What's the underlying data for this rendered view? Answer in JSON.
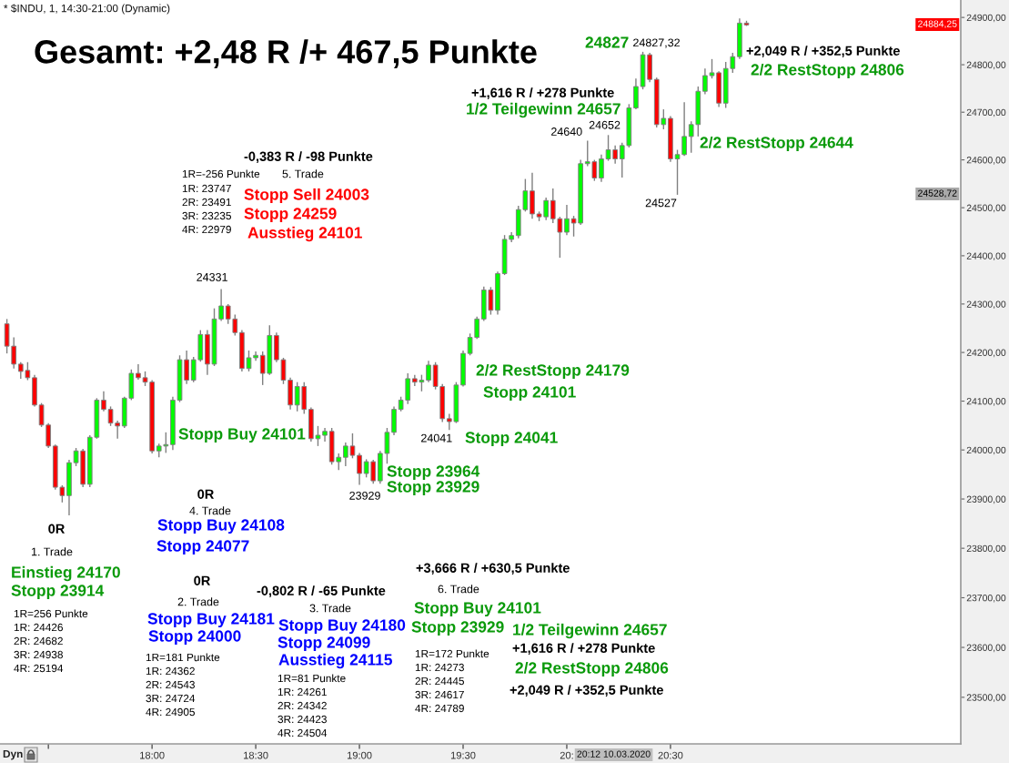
{
  "chart_data": {
    "type": "candlestick",
    "title": "Gesamt: +2,48 R /+ 467,5 Punkte",
    "subtitle": "* $INDU, 1, 14:30-21:00 (Dynamic)",
    "x": [
      "2020-03-10T17:18",
      "2020-03-10T17:20",
      "2020-03-10T17:22",
      "2020-03-10T17:24",
      "2020-03-10T17:26",
      "2020-03-10T17:28",
      "2020-03-10T17:30",
      "2020-03-10T17:32",
      "2020-03-10T17:34",
      "2020-03-10T17:36",
      "2020-03-10T17:38",
      "2020-03-10T17:40",
      "2020-03-10T17:42",
      "2020-03-10T17:44",
      "2020-03-10T17:46",
      "2020-03-10T17:48",
      "2020-03-10T17:50",
      "2020-03-10T17:52",
      "2020-03-10T17:54",
      "2020-03-10T17:56",
      "2020-03-10T17:58",
      "2020-03-10T18:00",
      "2020-03-10T18:02",
      "2020-03-10T18:04",
      "2020-03-10T18:06",
      "2020-03-10T18:08",
      "2020-03-10T18:10",
      "2020-03-10T18:12",
      "2020-03-10T18:14",
      "2020-03-10T18:16",
      "2020-03-10T18:18",
      "2020-03-10T18:20",
      "2020-03-10T18:22",
      "2020-03-10T18:24",
      "2020-03-10T18:26",
      "2020-03-10T18:28",
      "2020-03-10T18:30",
      "2020-03-10T18:32",
      "2020-03-10T18:34",
      "2020-03-10T18:36",
      "2020-03-10T18:38",
      "2020-03-10T18:40",
      "2020-03-10T18:42",
      "2020-03-10T18:44",
      "2020-03-10T18:46",
      "2020-03-10T18:48",
      "2020-03-10T18:50",
      "2020-03-10T18:52",
      "2020-03-10T18:54",
      "2020-03-10T18:56",
      "2020-03-10T18:58",
      "2020-03-10T19:00",
      "2020-03-10T19:02",
      "2020-03-10T19:04",
      "2020-03-10T19:06",
      "2020-03-10T19:08",
      "2020-03-10T19:10",
      "2020-03-10T19:12",
      "2020-03-10T19:14",
      "2020-03-10T19:16",
      "2020-03-10T19:18",
      "2020-03-10T19:20",
      "2020-03-10T19:22",
      "2020-03-10T19:24",
      "2020-03-10T19:26",
      "2020-03-10T19:28",
      "2020-03-10T19:30",
      "2020-03-10T19:32",
      "2020-03-10T19:34",
      "2020-03-10T19:36",
      "2020-03-10T19:38",
      "2020-03-10T19:40",
      "2020-03-10T19:42",
      "2020-03-10T19:44",
      "2020-03-10T19:46",
      "2020-03-10T19:48",
      "2020-03-10T19:50",
      "2020-03-10T19:52",
      "2020-03-10T19:54",
      "2020-03-10T19:56",
      "2020-03-10T19:58",
      "2020-03-10T20:00",
      "2020-03-10T20:02",
      "2020-03-10T20:04",
      "2020-03-10T20:06",
      "2020-03-10T20:08",
      "2020-03-10T20:10",
      "2020-03-10T20:12",
      "2020-03-10T20:14",
      "2020-03-10T20:16",
      "2020-03-10T20:18",
      "2020-03-10T20:20",
      "2020-03-10T20:22",
      "2020-03-10T20:24",
      "2020-03-10T20:26",
      "2020-03-10T20:28",
      "2020-03-10T20:30",
      "2020-03-10T20:32",
      "2020-03-10T20:34",
      "2020-03-10T20:36",
      "2020-03-10T20:38",
      "2020-03-10T20:40",
      "2020-03-10T20:42",
      "2020-03-10T20:44",
      "2020-03-10T20:46",
      "2020-03-10T20:48",
      "2020-03-10T20:50",
      "2020-03-10T20:52"
    ],
    "ohlc": [
      [
        24259,
        24269,
        24198,
        24213
      ],
      [
        24213,
        24231,
        24167,
        24176
      ],
      [
        24176,
        24180,
        24146,
        24161
      ],
      [
        24163,
        24180,
        24143,
        24148
      ],
      [
        24148,
        24154,
        24089,
        24092
      ],
      [
        24092,
        24096,
        24047,
        24051
      ],
      [
        24051,
        24055,
        24004,
        24008
      ],
      [
        24008,
        24011,
        23919,
        23924
      ],
      [
        23924,
        23928,
        23893,
        23907
      ],
      [
        23907,
        23980,
        23867,
        23974
      ],
      [
        23974,
        24004,
        23967,
        23998
      ],
      [
        23998,
        24002,
        23924,
        23930
      ],
      [
        23930,
        24030,
        23924,
        24026
      ],
      [
        24026,
        24106,
        24023,
        24102
      ],
      [
        24102,
        24120,
        24079,
        24083
      ],
      [
        24083,
        24089,
        24049,
        24055
      ],
      [
        24055,
        24060,
        24023,
        24049
      ],
      [
        24049,
        24109,
        24045,
        24106
      ],
      [
        24106,
        24165,
        24102,
        24157
      ],
      [
        24157,
        24176,
        24144,
        24148
      ],
      [
        24148,
        24161,
        24131,
        24139
      ],
      [
        24139,
        24143,
        23993,
        23998
      ],
      [
        23998,
        24013,
        23985,
        24008
      ],
      [
        24008,
        24036,
        23994,
        24011
      ],
      [
        24011,
        24109,
        24000,
        24102
      ],
      [
        24102,
        24194,
        24098,
        24185
      ],
      [
        24185,
        24204,
        24135,
        24143
      ],
      [
        24143,
        24191,
        24139,
        24185
      ],
      [
        24185,
        24246,
        24181,
        24237
      ],
      [
        24237,
        24246,
        24154,
        24176
      ],
      [
        24176,
        24291,
        24172,
        24269
      ],
      [
        24269,
        24331,
        24265,
        24296
      ],
      [
        24296,
        24300,
        24259,
        24269
      ],
      [
        24269,
        24278,
        24235,
        24241
      ],
      [
        24241,
        24246,
        24161,
        24167
      ],
      [
        24167,
        24204,
        24161,
        24189
      ],
      [
        24189,
        24202,
        24183,
        24194
      ],
      [
        24194,
        24202,
        24133,
        24157
      ],
      [
        24157,
        24256,
        24154,
        24235
      ],
      [
        24235,
        24241,
        24180,
        24185
      ],
      [
        24185,
        24189,
        24135,
        24143
      ],
      [
        24143,
        24148,
        24083,
        24092
      ],
      [
        24092,
        24139,
        24079,
        24130
      ],
      [
        24130,
        24139,
        24074,
        24083
      ],
      [
        24083,
        24087,
        24017,
        24023
      ],
      [
        24023,
        24049,
        24008,
        24030
      ],
      [
        24030,
        24045,
        24017,
        24038
      ],
      [
        24038,
        24045,
        23970,
        23976
      ],
      [
        23976,
        23993,
        23959,
        23985
      ],
      [
        23985,
        24015,
        23967,
        24008
      ],
      [
        24008,
        24034,
        23983,
        23989
      ],
      [
        23989,
        23994,
        23929,
        23952
      ],
      [
        23952,
        23981,
        23944,
        23976
      ],
      [
        23976,
        23980,
        23931,
        23937
      ],
      [
        23937,
        23998,
        23931,
        23993
      ],
      [
        23993,
        24045,
        23972,
        24036
      ],
      [
        24036,
        24089,
        24030,
        24083
      ],
      [
        24083,
        24109,
        24079,
        24102
      ],
      [
        24102,
        24157,
        24094,
        24146
      ],
      [
        24146,
        24154,
        24131,
        24139
      ],
      [
        24139,
        24154,
        24120,
        24143
      ],
      [
        24143,
        24183,
        24139,
        24174
      ],
      [
        24174,
        24180,
        24124,
        24130
      ],
      [
        24130,
        24135,
        24057,
        24064
      ],
      [
        24064,
        24074,
        24041,
        24058
      ],
      [
        24058,
        24139,
        24055,
        24133
      ],
      [
        24133,
        24204,
        24130,
        24198
      ],
      [
        24198,
        24239,
        24194,
        24231
      ],
      [
        24231,
        24274,
        24228,
        24269
      ],
      [
        24269,
        24336,
        24265,
        24329
      ],
      [
        24329,
        24335,
        24278,
        24287
      ],
      [
        24287,
        24367,
        24278,
        24363
      ],
      [
        24363,
        24443,
        24360,
        24434
      ],
      [
        24434,
        24449,
        24428,
        24442
      ],
      [
        24442,
        24504,
        24436,
        24496
      ],
      [
        24496,
        24560,
        24492,
        24535
      ],
      [
        24535,
        24573,
        24477,
        24487
      ],
      [
        24487,
        24492,
        24472,
        24481
      ],
      [
        24481,
        24521,
        24474,
        24515
      ],
      [
        24515,
        24540,
        24468,
        24477
      ],
      [
        24477,
        24481,
        24396,
        24449
      ],
      [
        24449,
        24506,
        24443,
        24477
      ],
      [
        24477,
        24483,
        24440,
        24468
      ],
      [
        24468,
        24600,
        24464,
        24592
      ],
      [
        24592,
        24640,
        24587,
        24596
      ],
      [
        24596,
        24600,
        24556,
        24562
      ],
      [
        24562,
        24611,
        24554,
        24602
      ],
      [
        24602,
        24652,
        24598,
        24621
      ],
      [
        24621,
        24630,
        24592,
        24602
      ],
      [
        24602,
        24636,
        24563,
        24630
      ],
      [
        24630,
        24717,
        24626,
        24709
      ],
      [
        24709,
        24771,
        24706,
        24754
      ],
      [
        24754,
        24827.32,
        24748,
        24821
      ],
      [
        24821,
        24825,
        24763,
        24769
      ],
      [
        24769,
        24773,
        24668,
        24674
      ],
      [
        24674,
        24706,
        24664,
        24687
      ],
      [
        24687,
        24692,
        24596,
        24602
      ],
      [
        24602,
        24621,
        24527,
        24611
      ],
      [
        24611,
        24721,
        24608,
        24649
      ],
      [
        24649,
        24681,
        24615,
        24674
      ],
      [
        24674,
        24754,
        24649,
        24744
      ],
      [
        24744,
        24792,
        24738,
        24777
      ],
      [
        24777,
        24812,
        24771,
        24783
      ],
      [
        24783,
        24786,
        24711,
        24719
      ],
      [
        24719,
        24806,
        24709,
        24792
      ],
      [
        24792,
        24825,
        24783,
        24817
      ],
      [
        24817,
        24898,
        24812,
        24888
      ],
      [
        24888,
        24893,
        24882,
        24884.25
      ]
    ],
    "colors": [
      "#ff0000",
      "#ff0000",
      "#ff0000",
      "#ff0000",
      "#ff0000",
      "#ff0000",
      "#ff0000",
      "#ff0000",
      "#ff0000",
      "#00ff00",
      "#00ff00",
      "#ff0000",
      "#00ff00",
      "#00ff00",
      "#ff0000",
      "#ff0000",
      "#ff0000",
      "#00ff00",
      "#00ff00",
      "#ff0000",
      "#ff0000",
      "#ff0000",
      "#00ff00",
      "#00ff00",
      "#00ff00",
      "#00ff00",
      "#ff0000",
      "#00ff00",
      "#00ff00",
      "#ff0000",
      "#00ff00",
      "#00ff00",
      "#ff0000",
      "#ff0000",
      "#ff0000",
      "#00ff00",
      "#00ff00",
      "#ff0000",
      "#00ff00",
      "#ff0000",
      "#ff0000",
      "#ff0000",
      "#00ff00",
      "#ff0000",
      "#ff0000",
      "#00ff00",
      "#00ff00",
      "#ff0000",
      "#00ff00",
      "#00ff00",
      "#ff0000",
      "#ff0000",
      "#00ff00",
      "#ff0000",
      "#00ff00",
      "#00ff00",
      "#00ff00",
      "#00ff00",
      "#00ff00",
      "#ff0000",
      "#00ff00",
      "#00ff00",
      "#ff0000",
      "#ff0000",
      "#ff0000",
      "#00ff00",
      "#00ff00",
      "#00ff00",
      "#00ff00",
      "#00ff00",
      "#ff0000",
      "#00ff00",
      "#00ff00",
      "#00ff00",
      "#00ff00",
      "#00ff00",
      "#ff0000",
      "#ff0000",
      "#00ff00",
      "#ff0000",
      "#ff0000",
      "#00ff00",
      "#ff0000",
      "#00ff00",
      "#00ff00",
      "#ff0000",
      "#00ff00",
      "#00ff00",
      "#ff0000",
      "#00ff00",
      "#00ff00",
      "#00ff00",
      "#00ff00",
      "#ff0000",
      "#ff0000",
      "#00ff00",
      "#ff0000",
      "#00ff00",
      "#00ff00",
      "#00ff00",
      "#00ff00",
      "#00ff00",
      "#00ff00",
      "#ff0000",
      "#00ff00",
      "#00ff00",
      "#00ff00",
      "#ff0000"
    ],
    "xlim": [
      "2020-03-10T17:16",
      "2020-03-10T21:54"
    ],
    "xticks": [
      {
        "value": "2020-03-10T17:30",
        "label": null
      },
      {
        "value": "2020-03-10T18:00",
        "label": "18:00"
      },
      {
        "value": "2020-03-10T18:30",
        "label": "18:30"
      },
      {
        "value": "2020-03-10T19:00",
        "label": "19:00"
      },
      {
        "value": "2020-03-10T19:30",
        "label": "19:30"
      },
      {
        "value": "2020-03-10T20:00",
        "label": "20:"
      },
      {
        "value": "2020-03-10T20:30",
        "label": "20:30"
      }
    ],
    "log": "y",
    "ylim": [
      23407,
      24937
    ],
    "yticks": [
      {
        "value": 23500,
        "label": "23500,00"
      },
      {
        "value": 23600,
        "label": "23600,00"
      },
      {
        "value": 23700,
        "label": "23700,00"
      },
      {
        "value": 23800,
        "label": "23800,00"
      },
      {
        "value": 23900,
        "label": "23900,00"
      },
      {
        "value": 24000,
        "label": "24000,00"
      },
      {
        "value": 24100,
        "label": "24100,00"
      },
      {
        "value": 24200,
        "label": "24200,00"
      },
      {
        "value": 24300,
        "label": "24300,00"
      },
      {
        "value": 24400,
        "label": "24400,00"
      },
      {
        "value": 24500,
        "label": "24500,00"
      },
      {
        "value": 24600,
        "label": "24600,00"
      },
      {
        "value": 24700,
        "label": "24700,00"
      },
      {
        "value": 24800,
        "label": "24800,00"
      },
      {
        "value": 24900,
        "label": "24900,00"
      }
    ],
    "annotations": [
      "-0,383 R / -98 Punkte",
      "1R=-256 Punkte",
      "5. Trade",
      "1R: 23747",
      "2R: 23491",
      "3R: 23235",
      "4R: 22979",
      "Stopp Sell 24003",
      "Stopp 24259",
      "Ausstieg 24101",
      "+1,616 R / +278 Punkte",
      "1/2 Teilgewinn 24657",
      "24827",
      "+2,049 R / +352,5 Punkte",
      "2/2 RestStopp 24806",
      "2/2 RestStopp 24644",
      "Stopp Buy 24101",
      "2/2 RestStopp 24179",
      "Stopp 24101",
      "Stopp 24041",
      "Stopp 23964",
      "Stopp 23929",
      "0R",
      "4. Trade",
      "Stopp Buy 24108",
      "Stopp 24077",
      "0R",
      "1. Trade",
      "Einstieg 24170",
      "Stopp 23914",
      "1R=256 Punkte",
      "1R: 24426",
      "2R: 24682",
      "3R: 24938",
      "4R: 25194",
      "0R",
      "2. Trade",
      "Stopp Buy 24181",
      "Stopp 24000",
      "1R=181 Punkte",
      "1R: 24362",
      "2R: 24543",
      "3R: 24724",
      "4R: 24905",
      "-0,802 R / -65 Punkte",
      "3. Trade",
      "Stopp Buy 24180",
      "Stopp 24099",
      "Ausstieg 24115",
      "1R=81 Punkte",
      "1R: 24261",
      "2R: 24342",
      "3R: 24423",
      "4R: 24504",
      "+3,666 R / +630,5 Punkte",
      "6. Trade",
      "Stopp Buy 24101",
      "Stopp 23929",
      "1R=172 Punkte",
      "1R: 24273",
      "2R: 24445",
      "3R: 24617",
      "4R: 24789",
      "1/2 Teilgewinn 24657",
      "+1,616 R / +278 Punkte",
      "2/2 RestStopp 24806",
      "+2,049 R / +352,5 Punkte",
      "Dyn",
      {
        "text": "24331",
        "x": "2020-03-10T18:20",
        "y": 24331
      },
      {
        "text": "23929",
        "x": "2020-03-10T19:00",
        "y": 23929
      },
      {
        "text": "24041",
        "x": "2020-03-10T19:26",
        "y": 24041
      },
      {
        "text": "24640",
        "x": "2020-03-10T20:06",
        "y": 24640
      },
      {
        "text": "24652",
        "x": "2020-03-10T20:12",
        "y": 24652
      },
      {
        "text": "24827,32",
        "x": "2020-03-10T20:22",
        "y": 24827.32
      },
      {
        "text": "24527",
        "x": "2020-03-10T20:32",
        "y": 24527
      },
      "24884,25",
      "24528,72",
      "20:12 10.03.2020"
    ]
  }
}
